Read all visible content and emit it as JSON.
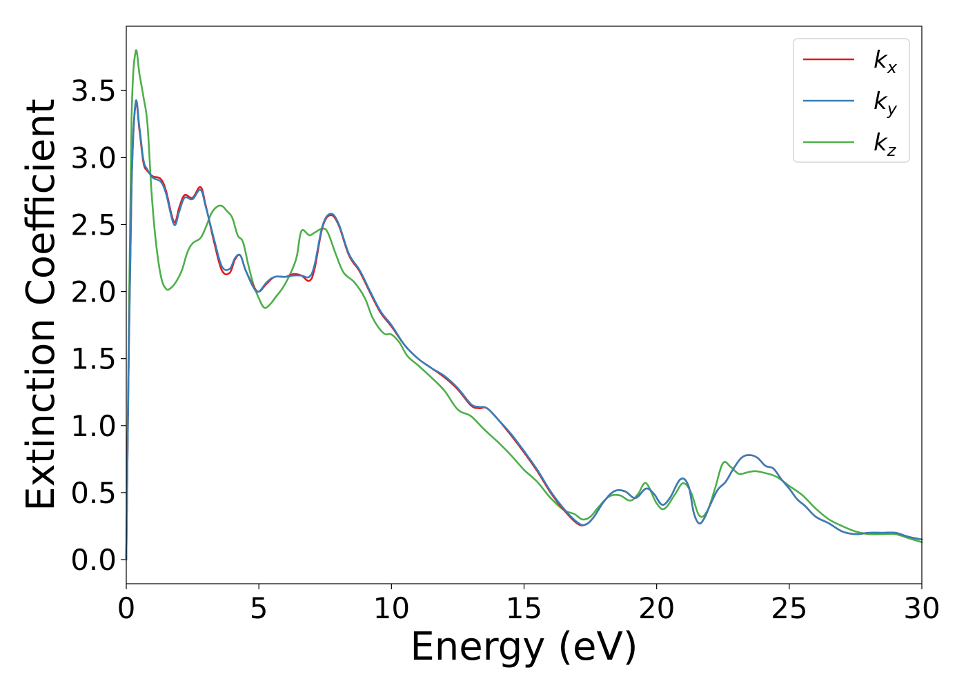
{
  "chart_data": {
    "type": "line",
    "xlabel": "Energy (eV)",
    "ylabel": "Extinction Coefficient",
    "xlim": [
      0,
      30
    ],
    "ylim": [
      -0.18,
      3.98
    ],
    "x_ticks": [
      "0",
      "5",
      "10",
      "15",
      "20",
      "25",
      "30"
    ],
    "y_ticks": [
      "0.0",
      "0.5",
      "1.0",
      "1.5",
      "2.0",
      "2.5",
      "3.0",
      "3.5"
    ],
    "grid": false,
    "legend_position": "top-right",
    "series": [
      {
        "name": "kx",
        "legend_base": "k",
        "legend_sub": "x",
        "color": "#e41a1c",
        "x": [
          0,
          0.1,
          0.2,
          0.35,
          0.5,
          0.65,
          0.8,
          1.0,
          1.3,
          1.5,
          1.8,
          2.0,
          2.2,
          2.5,
          2.8,
          3.0,
          3.3,
          3.6,
          3.9,
          4.1,
          4.3,
          4.5,
          4.8,
          5.0,
          5.3,
          5.6,
          6.0,
          6.3,
          6.6,
          6.9,
          7.1,
          7.4,
          7.7,
          8.0,
          8.4,
          8.8,
          9.2,
          9.6,
          10.0,
          10.5,
          11.0,
          11.5,
          12.0,
          12.5,
          13.0,
          13.3,
          13.6,
          14.0,
          14.5,
          15.0,
          15.5,
          16.0,
          16.5,
          17.0,
          17.3,
          17.6,
          18.0,
          18.4,
          18.8,
          19.2,
          19.6,
          19.9,
          20.2,
          20.5,
          20.9,
          21.2,
          21.4,
          21.6,
          21.8,
          22.0,
          22.3,
          22.6,
          22.9,
          23.2,
          23.5,
          23.8,
          24.1,
          24.4,
          24.7,
          25.0,
          25.3,
          25.6,
          26.0,
          26.5,
          27.0,
          27.5,
          28.0,
          28.5,
          29.0,
          29.5,
          30.0
        ],
        "y": [
          0.0,
          1.6,
          2.8,
          3.4,
          3.2,
          2.96,
          2.9,
          2.86,
          2.84,
          2.75,
          2.52,
          2.63,
          2.72,
          2.7,
          2.78,
          2.64,
          2.38,
          2.16,
          2.14,
          2.24,
          2.27,
          2.16,
          2.04,
          2.0,
          2.06,
          2.11,
          2.11,
          2.13,
          2.12,
          2.08,
          2.17,
          2.48,
          2.57,
          2.5,
          2.27,
          2.15,
          1.99,
          1.84,
          1.74,
          1.6,
          1.5,
          1.43,
          1.36,
          1.27,
          1.15,
          1.13,
          1.13,
          1.05,
          0.93,
          0.8,
          0.66,
          0.5,
          0.37,
          0.27,
          0.26,
          0.31,
          0.43,
          0.51,
          0.51,
          0.46,
          0.53,
          0.49,
          0.41,
          0.46,
          0.6,
          0.55,
          0.35,
          0.27,
          0.31,
          0.4,
          0.52,
          0.58,
          0.68,
          0.76,
          0.78,
          0.76,
          0.7,
          0.68,
          0.6,
          0.53,
          0.45,
          0.4,
          0.32,
          0.27,
          0.21,
          0.19,
          0.2,
          0.2,
          0.2,
          0.17,
          0.15
        ]
      },
      {
        "name": "ky",
        "legend_base": "k",
        "legend_sub": "y",
        "color": "#377eb8",
        "x": [
          0,
          0.1,
          0.2,
          0.35,
          0.5,
          0.65,
          0.8,
          1.0,
          1.3,
          1.5,
          1.8,
          2.0,
          2.2,
          2.5,
          2.8,
          3.0,
          3.3,
          3.6,
          3.9,
          4.1,
          4.3,
          4.5,
          4.8,
          5.0,
          5.3,
          5.6,
          6.0,
          6.3,
          6.6,
          6.9,
          7.1,
          7.4,
          7.7,
          8.0,
          8.4,
          8.8,
          9.2,
          9.6,
          10.0,
          10.5,
          11.0,
          11.5,
          12.0,
          12.5,
          13.0,
          13.3,
          13.6,
          14.0,
          14.5,
          15.0,
          15.5,
          16.0,
          16.5,
          17.0,
          17.3,
          17.6,
          18.0,
          18.4,
          18.8,
          19.2,
          19.6,
          19.9,
          20.2,
          20.5,
          20.9,
          21.2,
          21.4,
          21.6,
          21.8,
          22.0,
          22.3,
          22.6,
          22.9,
          23.2,
          23.5,
          23.8,
          24.1,
          24.4,
          24.7,
          25.0,
          25.3,
          25.6,
          26.0,
          26.5,
          27.0,
          27.5,
          28.0,
          28.5,
          29.0,
          29.5,
          30.0
        ],
        "y": [
          0.0,
          1.6,
          2.8,
          3.41,
          3.22,
          2.98,
          2.91,
          2.85,
          2.82,
          2.73,
          2.5,
          2.6,
          2.7,
          2.69,
          2.76,
          2.63,
          2.4,
          2.19,
          2.17,
          2.25,
          2.27,
          2.16,
          2.03,
          2.0,
          2.07,
          2.11,
          2.11,
          2.12,
          2.12,
          2.11,
          2.2,
          2.49,
          2.58,
          2.51,
          2.28,
          2.16,
          2.0,
          1.85,
          1.75,
          1.6,
          1.5,
          1.43,
          1.37,
          1.28,
          1.16,
          1.14,
          1.13,
          1.05,
          0.94,
          0.81,
          0.67,
          0.51,
          0.38,
          0.28,
          0.26,
          0.31,
          0.43,
          0.51,
          0.51,
          0.46,
          0.53,
          0.49,
          0.41,
          0.46,
          0.6,
          0.55,
          0.35,
          0.27,
          0.31,
          0.4,
          0.52,
          0.58,
          0.68,
          0.76,
          0.78,
          0.76,
          0.7,
          0.68,
          0.6,
          0.53,
          0.45,
          0.4,
          0.32,
          0.27,
          0.21,
          0.19,
          0.2,
          0.2,
          0.2,
          0.17,
          0.15
        ]
      },
      {
        "name": "kz",
        "legend_base": "k",
        "legend_sub": "z",
        "color": "#4daf4a",
        "x": [
          0,
          0.1,
          0.2,
          0.35,
          0.5,
          0.65,
          0.8,
          0.95,
          1.1,
          1.3,
          1.5,
          1.7,
          1.9,
          2.1,
          2.3,
          2.5,
          2.8,
          3.0,
          3.2,
          3.4,
          3.6,
          3.8,
          4.0,
          4.2,
          4.4,
          4.6,
          4.8,
          5.0,
          5.2,
          5.4,
          5.6,
          6.0,
          6.4,
          6.6,
          6.9,
          7.1,
          7.4,
          7.6,
          7.9,
          8.2,
          8.6,
          9.0,
          9.3,
          9.7,
          10.0,
          10.3,
          10.6,
          11.0,
          11.5,
          12.0,
          12.5,
          13.0,
          13.5,
          14.0,
          14.5,
          15.0,
          15.5,
          16.0,
          16.5,
          16.9,
          17.2,
          17.5,
          17.8,
          18.2,
          18.6,
          19.0,
          19.3,
          19.6,
          20.0,
          20.3,
          20.7,
          21.0,
          21.3,
          21.6,
          21.9,
          22.2,
          22.5,
          22.8,
          23.1,
          23.4,
          23.7,
          24.0,
          24.5,
          25.0,
          25.5,
          26.0,
          26.5,
          27.0,
          27.5,
          28.0,
          28.5,
          29.0,
          29.5,
          30.0
        ],
        "y": [
          0.0,
          1.8,
          3.3,
          3.79,
          3.62,
          3.45,
          3.25,
          2.75,
          2.4,
          2.12,
          2.02,
          2.03,
          2.08,
          2.16,
          2.29,
          2.36,
          2.4,
          2.48,
          2.58,
          2.63,
          2.64,
          2.6,
          2.55,
          2.42,
          2.37,
          2.2,
          2.05,
          1.95,
          1.88,
          1.9,
          1.95,
          2.06,
          2.24,
          2.45,
          2.42,
          2.44,
          2.47,
          2.44,
          2.28,
          2.14,
          2.07,
          1.95,
          1.8,
          1.69,
          1.68,
          1.62,
          1.52,
          1.45,
          1.36,
          1.26,
          1.12,
          1.07,
          0.97,
          0.88,
          0.78,
          0.67,
          0.58,
          0.46,
          0.37,
          0.34,
          0.3,
          0.32,
          0.39,
          0.47,
          0.48,
          0.44,
          0.49,
          0.57,
          0.42,
          0.38,
          0.49,
          0.57,
          0.5,
          0.33,
          0.36,
          0.53,
          0.72,
          0.69,
          0.64,
          0.65,
          0.66,
          0.65,
          0.62,
          0.55,
          0.48,
          0.38,
          0.3,
          0.25,
          0.21,
          0.19,
          0.19,
          0.19,
          0.16,
          0.13
        ]
      }
    ]
  }
}
